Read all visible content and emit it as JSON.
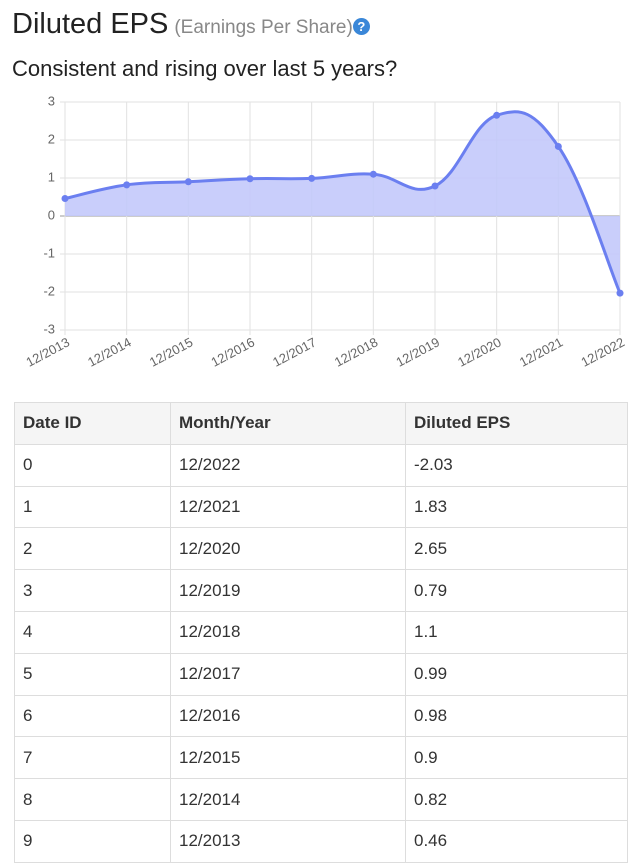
{
  "header": {
    "title": "Diluted EPS",
    "subtitle_paren": "(Earnings Per Share)",
    "help": "?",
    "subtitle": "Consistent and rising over last 5 years?"
  },
  "chart_data": {
    "type": "line",
    "categories": [
      "12/2013",
      "12/2014",
      "12/2015",
      "12/2016",
      "12/2017",
      "12/2018",
      "12/2019",
      "12/2020",
      "12/2021",
      "12/2022"
    ],
    "values": [
      0.46,
      0.82,
      0.9,
      0.98,
      0.99,
      1.1,
      0.79,
      2.65,
      1.83,
      -2.03
    ],
    "color": "#6b7ff0",
    "fill": "#c3c9fb",
    "ylim": [
      -3,
      3
    ],
    "yticks": [
      -3,
      -2,
      -1,
      0,
      1,
      2,
      3
    ],
    "grid": true
  },
  "table": {
    "columns": [
      "Date ID",
      "Month/Year",
      "Diluted EPS"
    ],
    "rows": [
      [
        "0",
        "12/2022",
        "-2.03"
      ],
      [
        "1",
        "12/2021",
        "1.83"
      ],
      [
        "2",
        "12/2020",
        "2.65"
      ],
      [
        "3",
        "12/2019",
        "0.79"
      ],
      [
        "4",
        "12/2018",
        "1.1"
      ],
      [
        "5",
        "12/2017",
        "0.99"
      ],
      [
        "6",
        "12/2016",
        "0.98"
      ],
      [
        "7",
        "12/2015",
        "0.9"
      ],
      [
        "8",
        "12/2014",
        "0.82"
      ],
      [
        "9",
        "12/2013",
        "0.46"
      ]
    ]
  }
}
